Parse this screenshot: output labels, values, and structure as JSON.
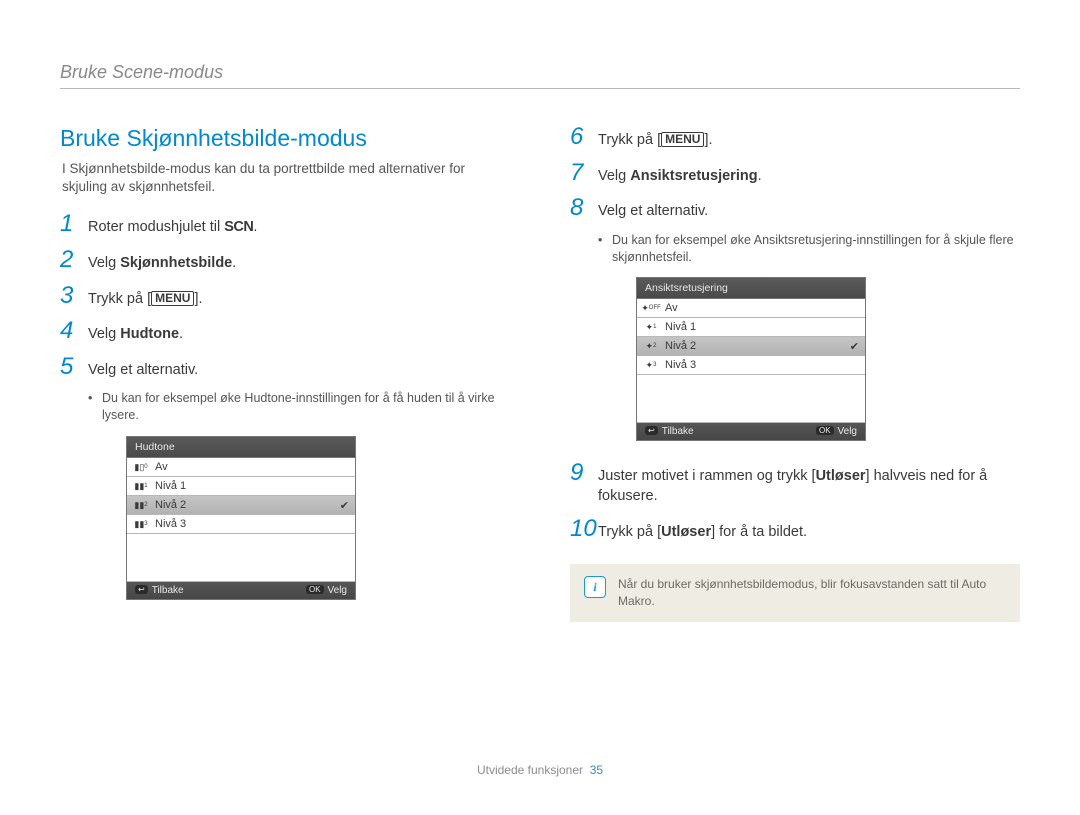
{
  "header": {
    "breadcrumb": "Bruke Scene-modus"
  },
  "section": {
    "title": "Bruke Skjønnhetsbilde-modus",
    "intro": "I Skjønnhetsbilde-modus kan du ta portrettbilde med alternativer for skjuling av skjønnhetsfeil."
  },
  "steps": {
    "s1_pre": "Roter modushjulet til ",
    "s1_icon": "SCN",
    "s1_post": ".",
    "s2_pre": "Velg ",
    "s2_bold": "Skjønnhetsbilde",
    "s2_post": ".",
    "s3_pre": "Trykk på [",
    "s3_menu": "MENU",
    "s3_post": "].",
    "s4_pre": "Velg ",
    "s4_bold": "Hudtone",
    "s4_post": ".",
    "s5": "Velg et alternativ.",
    "s5_bullet": "Du kan for eksempel øke Hudtone-innstillingen for å få huden til å virke lysere.",
    "s6_pre": "Trykk på [",
    "s6_menu": "MENU",
    "s6_post": "].",
    "s7_pre": "Velg ",
    "s7_bold": "Ansiktsretusjering",
    "s7_post": ".",
    "s8": "Velg et alternativ.",
    "s8_bullet": "Du kan for eksempel øke Ansiktsretusjering-innstillingen for å skjule flere skjønnhetsfeil.",
    "s9_a": "Juster motivet i rammen og trykk [",
    "s9_bold": "Utløser",
    "s9_b": "] halvveis ned for å fokusere.",
    "s10_a": "Trykk på [",
    "s10_bold": "Utløser",
    "s10_b": "] for å ta bildet."
  },
  "lcd1": {
    "title": "Hudtone",
    "items": [
      {
        "icon": "▮▯",
        "sub": "0",
        "label": "Av"
      },
      {
        "icon": "▮▮",
        "sub": "1",
        "label": "Nivå 1"
      },
      {
        "icon": "▮▮",
        "sub": "2",
        "label": "Nivå 2",
        "selected": true,
        "check": true
      },
      {
        "icon": "▮▮",
        "sub": "3",
        "label": "Nivå 3"
      }
    ],
    "back_badge": "↩",
    "back": "Tilbake",
    "ok_badge": "OK",
    "ok": "Velg"
  },
  "lcd2": {
    "title": "Ansiktsretusjering",
    "items": [
      {
        "icon": "✦",
        "sub": "OFF",
        "label": "Av"
      },
      {
        "icon": "✦",
        "sub": "1",
        "label": "Nivå 1"
      },
      {
        "icon": "✦",
        "sub": "2",
        "label": "Nivå 2",
        "selected": true,
        "check": true
      },
      {
        "icon": "✦",
        "sub": "3",
        "label": "Nivå 3"
      }
    ],
    "back_badge": "↩",
    "back": "Tilbake",
    "ok_badge": "OK",
    "ok": "Velg"
  },
  "note": {
    "text": "Når du bruker skjønnhetsbildemodus, blir fokusavstanden satt til Auto Makro."
  },
  "footer": {
    "section": "Utvidede funksjoner",
    "page": "35"
  }
}
